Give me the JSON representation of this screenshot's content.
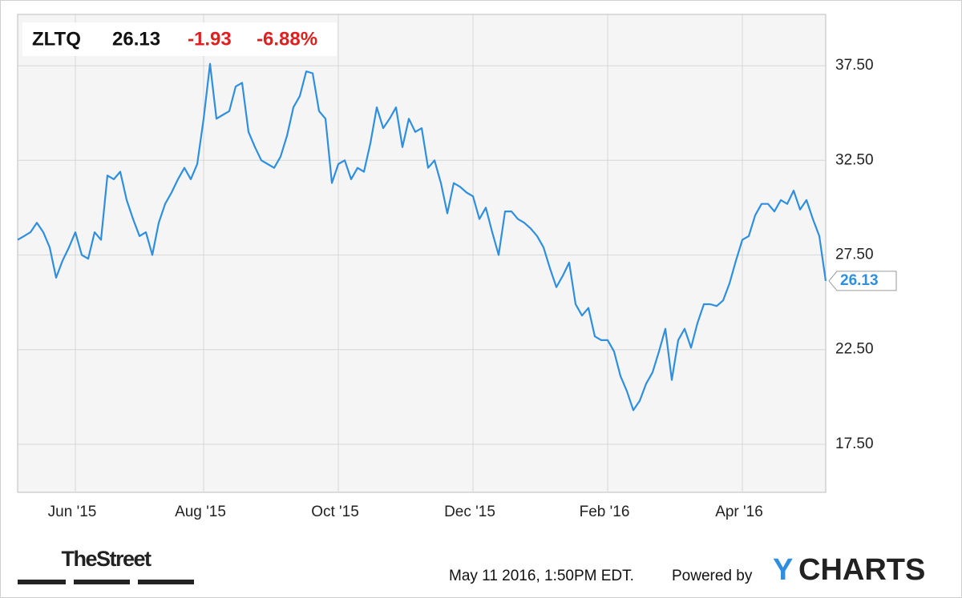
{
  "chart_data": {
    "type": "line",
    "header": {
      "symbol": "ZLTQ",
      "price": "26.13",
      "change": "-1.93",
      "change_percent": "-6.88%"
    },
    "categories": [
      null,
      null,
      null,
      null,
      null,
      null,
      null,
      null,
      null,
      "Jun '15",
      null,
      null,
      null,
      null,
      null,
      null,
      null,
      null,
      null,
      null,
      null,
      null,
      null,
      null,
      null,
      null,
      null,
      null,
      null,
      "Aug '15",
      null,
      null,
      null,
      null,
      null,
      null,
      null,
      null,
      null,
      null,
      null,
      null,
      null,
      null,
      null,
      null,
      null,
      null,
      null,
      null,
      "Oct '15",
      null,
      null,
      null,
      null,
      null,
      null,
      null,
      null,
      null,
      null,
      null,
      null,
      null,
      null,
      null,
      null,
      null,
      null,
      null,
      null,
      "Dec '15",
      null,
      null,
      null,
      null,
      null,
      null,
      null,
      null,
      null,
      null,
      null,
      null,
      null,
      null,
      null,
      null,
      null,
      null,
      null,
      null,
      "Feb '16",
      null,
      null,
      null,
      null,
      null,
      null,
      null,
      null,
      null,
      null,
      null,
      null,
      null,
      null,
      null,
      null,
      null,
      null,
      null,
      null,
      "Apr '16",
      null,
      null,
      null,
      null,
      null,
      null,
      null,
      null,
      null,
      null,
      null,
      null,
      null
    ],
    "series": [
      {
        "color": "#2e8fe0",
        "values": [
          28.3,
          28.5,
          28.7,
          29.2,
          28.7,
          27.9,
          26.3,
          27.2,
          27.9,
          28.7,
          27.5,
          27.3,
          28.7,
          28.3,
          31.7,
          31.5,
          31.9,
          30.4,
          29.4,
          28.5,
          28.7,
          27.5,
          29.2,
          30.2,
          30.8,
          31.5,
          32.1,
          31.5,
          32.3,
          34.7,
          37.6,
          34.7,
          34.9,
          35.1,
          36.4,
          36.6,
          34.0,
          33.2,
          32.5,
          32.3,
          32.1,
          32.7,
          33.8,
          35.3,
          35.9,
          37.2,
          37.1,
          35.1,
          34.7,
          31.3,
          32.3,
          32.5,
          31.5,
          32.1,
          31.9,
          33.4,
          35.3,
          34.2,
          34.7,
          35.3,
          33.2,
          34.7,
          34.0,
          34.2,
          32.1,
          32.5,
          31.3,
          29.7,
          31.3,
          31.1,
          30.8,
          30.6,
          29.4,
          30.0,
          28.7,
          27.5,
          29.8,
          29.8,
          29.4,
          29.2,
          28.9,
          28.5,
          27.9,
          26.8,
          25.8,
          26.4,
          27.1,
          24.9,
          24.3,
          24.7,
          23.2,
          23.0,
          23.0,
          22.4,
          21.1,
          20.3,
          19.3,
          19.8,
          20.7,
          21.3,
          22.4,
          23.6,
          20.9,
          23.0,
          23.6,
          22.6,
          23.9,
          24.9,
          24.9,
          24.8,
          25.1,
          26.0,
          27.2,
          28.3,
          28.5,
          29.6,
          30.2,
          30.2,
          29.8,
          30.4,
          30.2,
          30.9,
          29.9,
          30.4,
          29.4,
          28.5,
          26.13
        ]
      }
    ],
    "ylim": [
      14.96,
      40.21
    ],
    "yticks": [
      {
        "value": 17.5,
        "label": "17.50"
      },
      {
        "value": 22.5,
        "label": "22.50"
      },
      {
        "value": 27.5,
        "label": "27.50"
      },
      {
        "value": 32.5,
        "label": "32.50"
      },
      {
        "value": 37.5,
        "label": "37.50"
      }
    ],
    "grid": true
  },
  "footer": {
    "publisher": "TheStreet",
    "timestamp": "May 11 2016, 1:50PM EDT.",
    "powered_by": "Powered by",
    "brand_y": "Y",
    "brand_rest": "CHARTS"
  }
}
